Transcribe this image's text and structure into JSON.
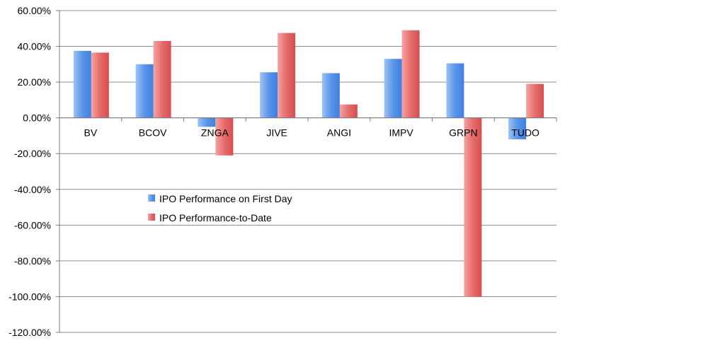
{
  "chart_data": {
    "type": "bar",
    "categories": [
      "BV",
      "BCOV",
      "ZNGA",
      "JIVE",
      "ANGI",
      "IMPV",
      "GRPN",
      "TUDO"
    ],
    "series": [
      {
        "name": "IPO Performance on First Day",
        "color": "#4a86e8",
        "values": [
          37.5,
          30.0,
          -5.0,
          25.5,
          25.0,
          33.0,
          30.5,
          -12.0
        ]
      },
      {
        "name": "IPO Performance-to-Date",
        "color": "#e06060",
        "values": [
          36.5,
          43.0,
          -21.0,
          47.5,
          7.5,
          49.0,
          -100.0,
          19.0
        ]
      }
    ],
    "ylim": [
      -120,
      60
    ],
    "yticks": [
      60,
      40,
      20,
      0,
      -20,
      -40,
      -60,
      -80,
      -100,
      -120
    ],
    "ytick_labels": [
      "60.00%",
      "40.00%",
      "20.00%",
      "0.00%",
      "-20.00%",
      "-40.00%",
      "-60.00%",
      "-80.00%",
      "-100.00%",
      "-120.00%"
    ],
    "grid": true,
    "legend": "lower-left-inside",
    "title": "",
    "xlabel": "",
    "ylabel": ""
  }
}
